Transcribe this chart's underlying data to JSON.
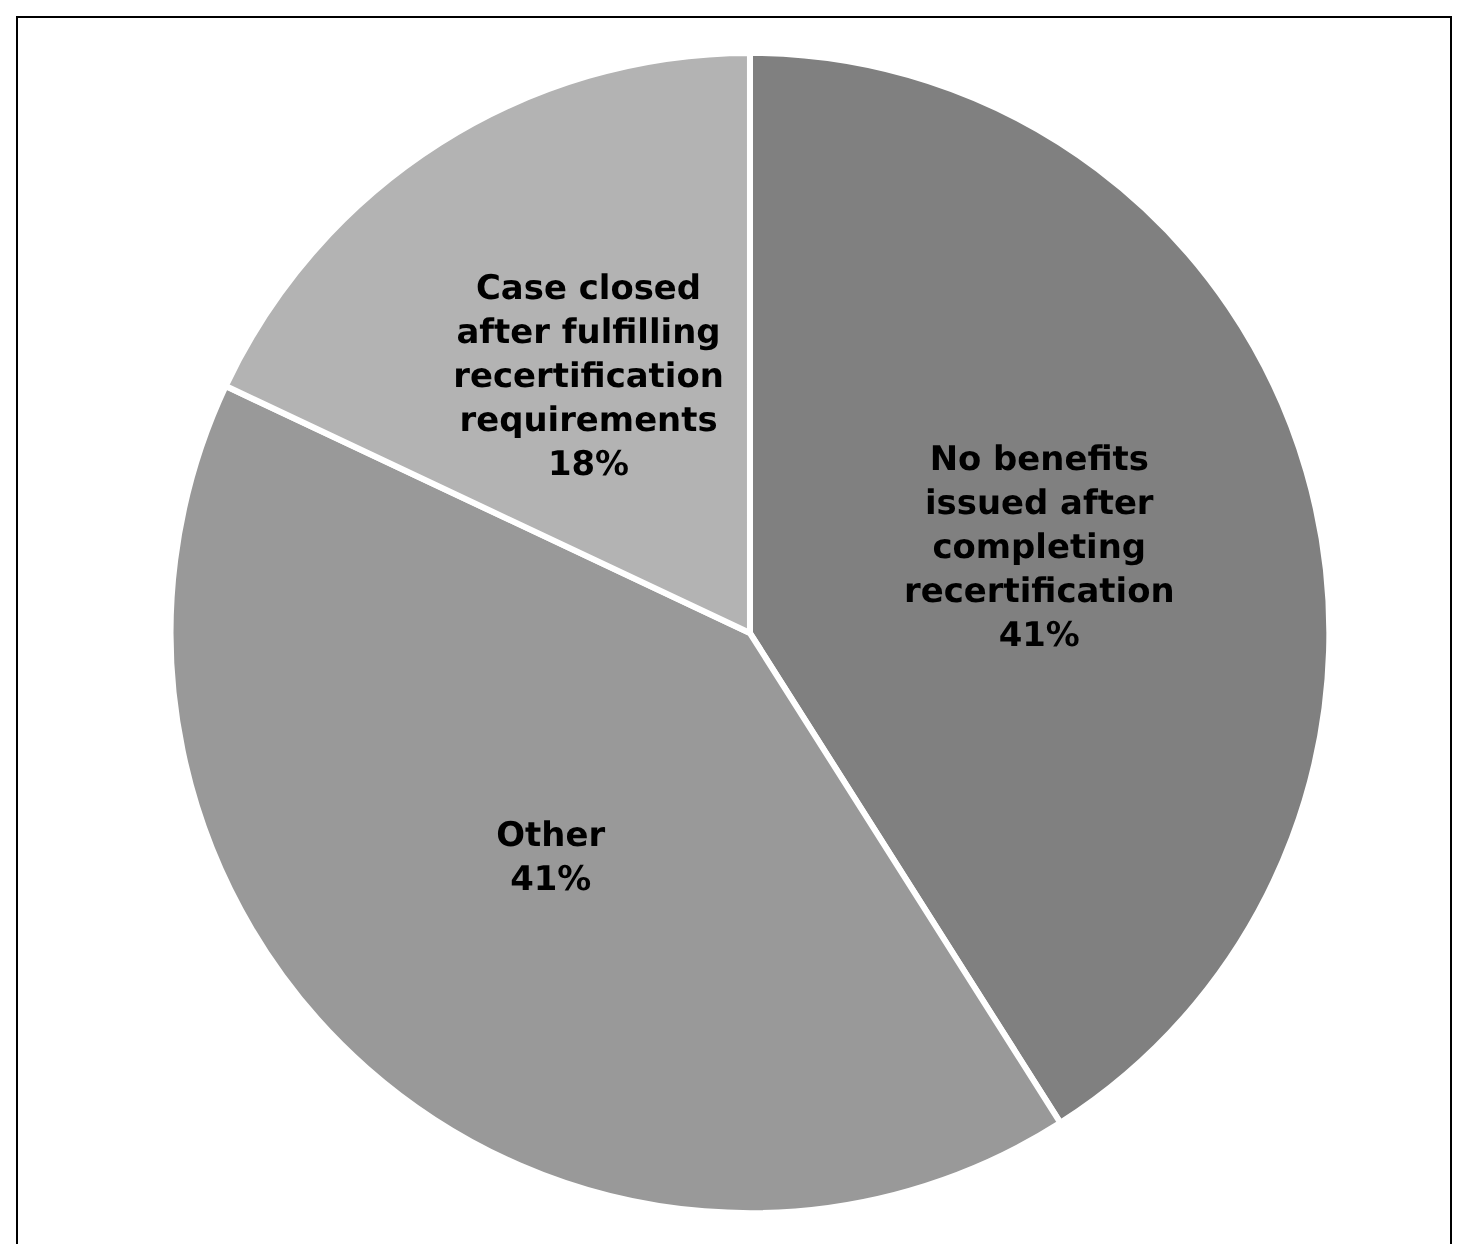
{
  "chart_data": {
    "type": "pie",
    "categories": [
      "No benefits issued after completing recertification",
      "Other",
      "Case closed after fulfilling recertification requirements"
    ],
    "values": [
      41,
      41,
      18
    ],
    "colors": [
      "#808080",
      "#999999",
      "#b3b3b3"
    ],
    "value_labels": [
      "41%",
      "41%",
      "18%"
    ],
    "legend": false
  }
}
